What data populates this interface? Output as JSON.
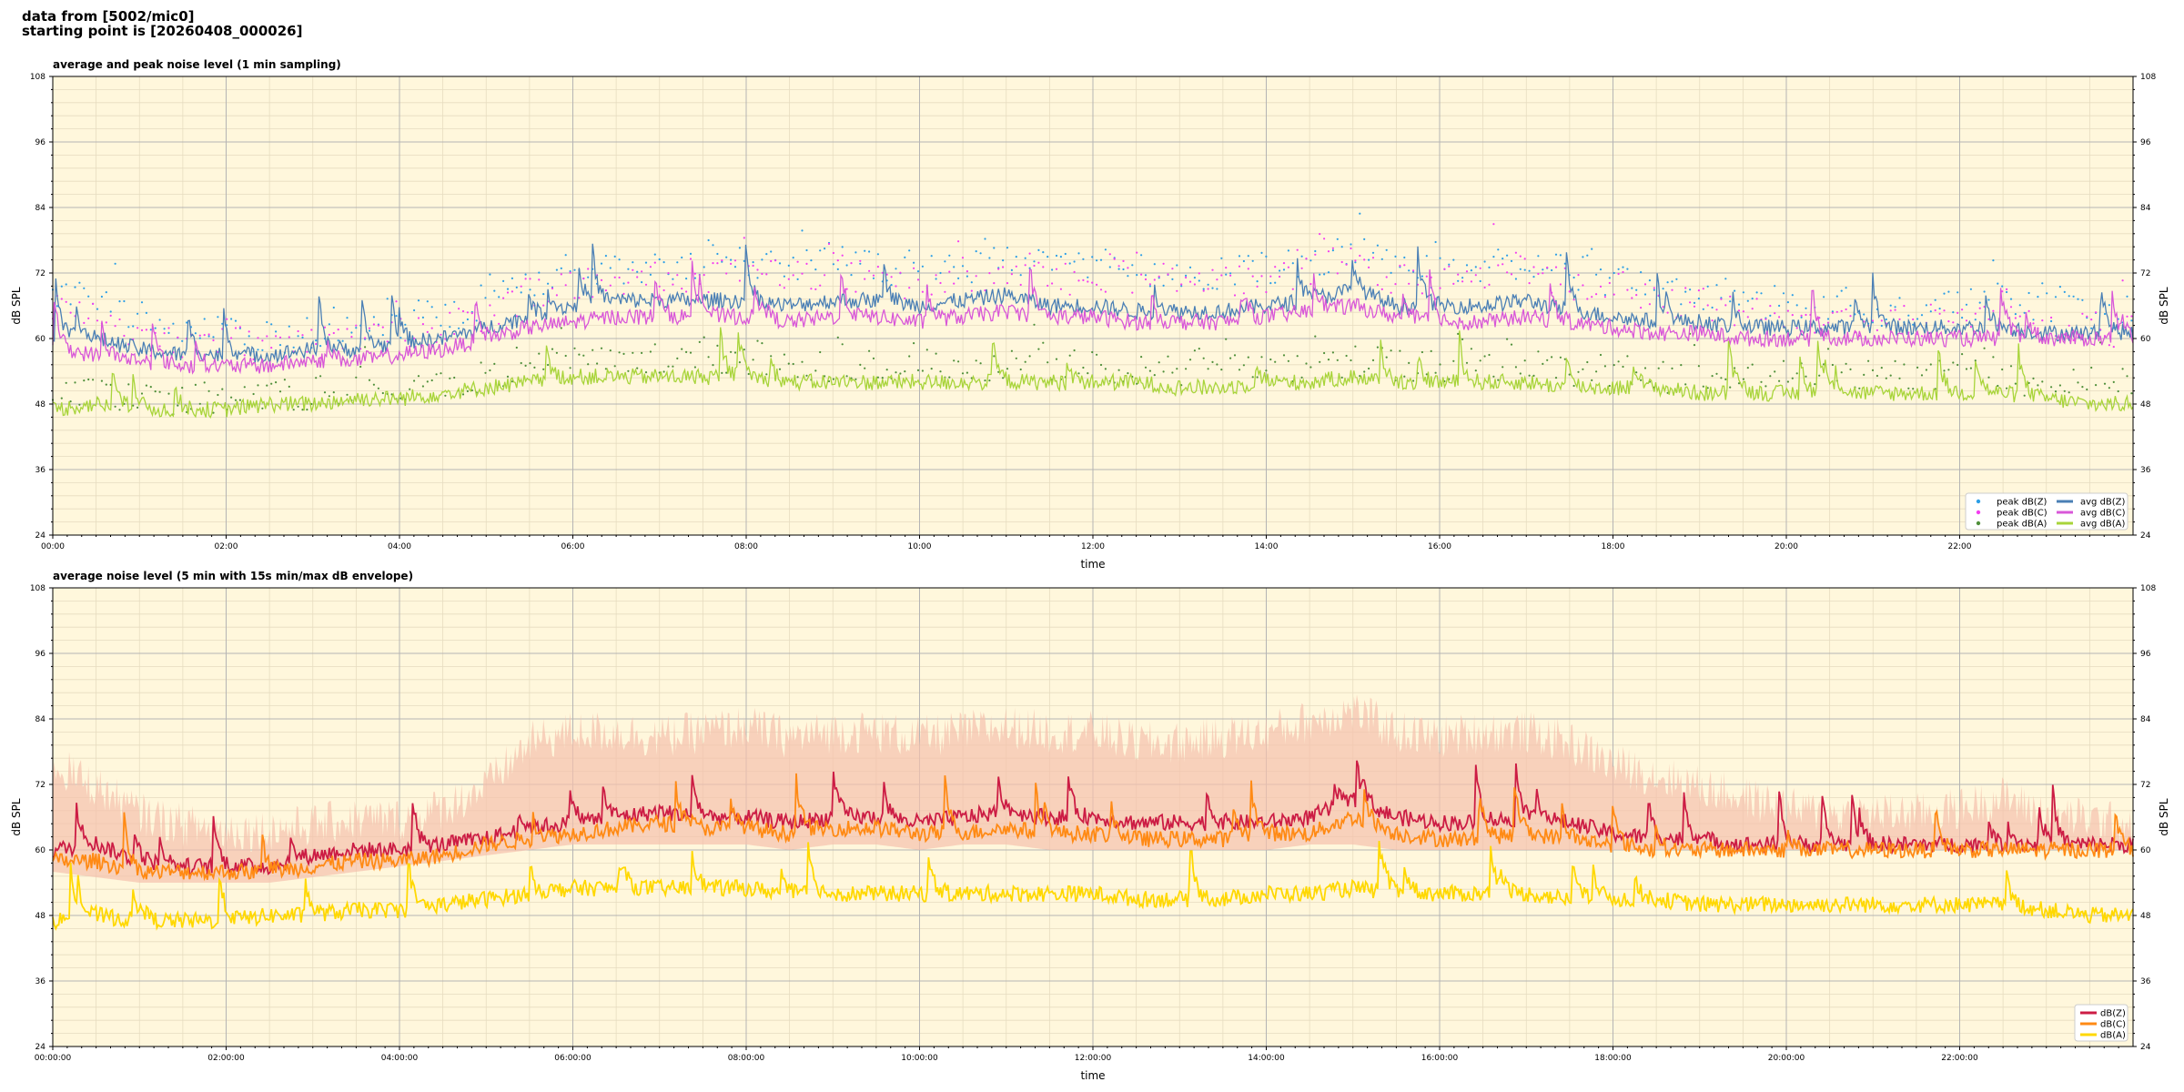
{
  "header": {
    "line1": "data from [5002/mic0]",
    "line2": "starting point is [20260408_000026]"
  },
  "colors": {
    "background": "#fff7dc",
    "grid_major": "#b4b4b4",
    "grid_minor": "#e6dcc0",
    "peak_z": "#2c9ee6",
    "peak_c": "#f33ef0",
    "peak_a": "#4f8f3a",
    "avg_z": "#4a7fb5",
    "avg_c": "#d857d8",
    "avg_a": "#a8d43a",
    "z": "#cc1c44",
    "c": "#ff8a14",
    "a": "#ffd800",
    "envelope": "#f5c0ac"
  },
  "chart_data": [
    {
      "type": "line",
      "title": "average and peak noise level (1 min sampling)",
      "xlabel": "time",
      "ylabel": "dB SPL",
      "ylim": [
        24,
        108
      ],
      "xlim_hours": [
        0,
        24
      ],
      "yticks": [
        "24",
        "36",
        "48",
        "60",
        "72",
        "84",
        "96",
        "108"
      ],
      "xticks": [
        "00:00",
        "02:00",
        "04:00",
        "06:00",
        "08:00",
        "10:00",
        "12:00",
        "14:00",
        "16:00",
        "18:00",
        "20:00",
        "22:00"
      ],
      "grid": true,
      "legend_position": "bottom-right",
      "x_hours": [
        0,
        0.5,
        1,
        1.5,
        2,
        2.5,
        3,
        3.5,
        4,
        4.5,
        5,
        5.5,
        6,
        6.5,
        7,
        7.5,
        8,
        8.5,
        9,
        9.5,
        10,
        10.5,
        11,
        11.5,
        12,
        12.5,
        13,
        13.5,
        14,
        14.5,
        15,
        15.5,
        16,
        16.5,
        17,
        17.5,
        18,
        18.5,
        19,
        19.5,
        20,
        20.5,
        21,
        21.5,
        22,
        22.5,
        23,
        23.5,
        24
      ],
      "series": [
        {
          "name": "peak dB(Z)",
          "kind": "points",
          "values": [
            68,
            67,
            63,
            61,
            61,
            60,
            61,
            62,
            62,
            64,
            66,
            70,
            72,
            73,
            73,
            73,
            74,
            73,
            74,
            73,
            72,
            73,
            74,
            73,
            73,
            72,
            72,
            72,
            73,
            74,
            76,
            73,
            72,
            73,
            74,
            72,
            70,
            69,
            68,
            67,
            66,
            65,
            65,
            65,
            66,
            67,
            65,
            64,
            63
          ]
        },
        {
          "name": "peak dB(C)",
          "kind": "points",
          "values": [
            65,
            64,
            60,
            59,
            59,
            58,
            59,
            60,
            60,
            62,
            64,
            67,
            70,
            71,
            71,
            71,
            72,
            71,
            72,
            71,
            70,
            71,
            72,
            71,
            71,
            70,
            70,
            70,
            71,
            72,
            74,
            71,
            70,
            71,
            72,
            70,
            68,
            67,
            66,
            65,
            64,
            63,
            63,
            63,
            64,
            65,
            63,
            62,
            61
          ]
        },
        {
          "name": "peak dB(A)",
          "kind": "points",
          "values": [
            50,
            50,
            49,
            49,
            49,
            49,
            50,
            51,
            51,
            52,
            53,
            55,
            56,
            56,
            56,
            56,
            56,
            55,
            55,
            55,
            55,
            55,
            55,
            55,
            55,
            54,
            54,
            54,
            55,
            55,
            56,
            55,
            55,
            55,
            55,
            54,
            54,
            53,
            53,
            53,
            53,
            53,
            53,
            53,
            53,
            53,
            52,
            52,
            52
          ]
        },
        {
          "name": "avg dB(Z)",
          "kind": "line",
          "values": [
            61,
            60,
            58,
            57,
            57,
            57,
            58,
            58,
            59,
            60,
            62,
            64,
            66,
            67,
            67,
            67,
            67,
            66,
            67,
            67,
            66,
            67,
            68,
            66,
            66,
            65,
            65,
            65,
            66,
            67,
            69,
            66,
            66,
            66,
            67,
            65,
            64,
            63,
            63,
            62,
            62,
            62,
            62,
            62,
            62,
            62,
            61,
            61,
            61
          ]
        },
        {
          "name": "avg dB(C)",
          "kind": "line",
          "values": [
            58,
            57,
            56,
            55,
            55,
            55,
            56,
            56,
            57,
            58,
            60,
            62,
            63,
            64,
            64,
            64,
            64,
            63,
            64,
            64,
            63,
            64,
            65,
            64,
            64,
            63,
            63,
            63,
            64,
            65,
            66,
            64,
            63,
            63,
            64,
            63,
            62,
            61,
            61,
            60,
            60,
            60,
            60,
            60,
            60,
            60,
            60,
            60,
            60
          ]
        },
        {
          "name": "avg dB(A)",
          "kind": "line",
          "values": [
            47,
            48,
            47,
            47,
            47,
            48,
            48,
            49,
            49,
            50,
            51,
            52,
            53,
            53,
            53,
            53,
            53,
            52,
            52,
            52,
            52,
            52,
            52,
            52,
            52,
            52,
            51,
            51,
            52,
            52,
            53,
            52,
            52,
            52,
            52,
            51,
            51,
            51,
            50,
            50,
            50,
            50,
            50,
            50,
            50,
            50,
            49,
            48,
            48
          ]
        }
      ]
    },
    {
      "type": "line",
      "title": "average noise level (5 min with 15s min/max dB envelope)",
      "xlabel": "time",
      "ylabel": "dB SPL",
      "ylim": [
        24,
        108
      ],
      "xlim_hours": [
        0,
        24
      ],
      "yticks": [
        "24",
        "36",
        "48",
        "60",
        "72",
        "84",
        "96",
        "108"
      ],
      "xticks": [
        "00:00:00",
        "02:00:00",
        "04:00:00",
        "06:00:00",
        "08:00:00",
        "10:00:00",
        "12:00:00",
        "14:00:00",
        "16:00:00",
        "18:00:00",
        "20:00:00",
        "22:00:00"
      ],
      "grid": true,
      "legend_position": "bottom-right",
      "x_hours": [
        0,
        0.5,
        1,
        1.5,
        2,
        2.5,
        3,
        3.5,
        4,
        4.5,
        5,
        5.5,
        6,
        6.5,
        7,
        7.5,
        8,
        8.5,
        9,
        9.5,
        10,
        10.5,
        11,
        11.5,
        12,
        12.5,
        13,
        13.5,
        14,
        14.5,
        15,
        15.5,
        16,
        16.5,
        17,
        17.5,
        18,
        18.5,
        19,
        19.5,
        20,
        20.5,
        21,
        21.5,
        22,
        22.5,
        23,
        23.5,
        24
      ],
      "envelope_max": [
        74,
        70,
        65,
        63,
        62,
        62,
        63,
        64,
        64,
        66,
        70,
        78,
        80,
        80,
        79,
        80,
        81,
        79,
        80,
        80,
        79,
        80,
        81,
        80,
        80,
        78,
        78,
        79,
        80,
        82,
        84,
        80,
        79,
        80,
        80,
        78,
        74,
        72,
        70,
        68,
        66,
        65,
        65,
        65,
        66,
        68,
        65,
        64,
        63
      ],
      "envelope_min": [
        56,
        55,
        54,
        54,
        54,
        54,
        55,
        56,
        57,
        58,
        59,
        60,
        61,
        61,
        61,
        61,
        61,
        60,
        61,
        61,
        60,
        61,
        61,
        60,
        60,
        60,
        60,
        60,
        60,
        61,
        61,
        60,
        60,
        60,
        60,
        60,
        60,
        60,
        60,
        60,
        60,
        60,
        60,
        60,
        60,
        60,
        60,
        60,
        60
      ],
      "series": [
        {
          "name": "dB(Z)",
          "kind": "line",
          "values": [
            60,
            61,
            58,
            57,
            57,
            57,
            59,
            60,
            60,
            61,
            62,
            64,
            65,
            66,
            67,
            66,
            66,
            65,
            66,
            66,
            65,
            66,
            67,
            66,
            66,
            65,
            65,
            65,
            65,
            66,
            69,
            66,
            65,
            65,
            66,
            65,
            63,
            62,
            62,
            61,
            61,
            61,
            61,
            61,
            61,
            61,
            61,
            61,
            61
          ]
        },
        {
          "name": "dB(C)",
          "kind": "line",
          "values": [
            58,
            58,
            56,
            56,
            56,
            56,
            57,
            58,
            58,
            59,
            61,
            62,
            63,
            64,
            65,
            64,
            64,
            63,
            64,
            64,
            63,
            63,
            64,
            63,
            63,
            62,
            62,
            62,
            63,
            63,
            66,
            63,
            62,
            62,
            63,
            62,
            61,
            60,
            60,
            60,
            60,
            60,
            60,
            60,
            60,
            60,
            60,
            60,
            60
          ]
        },
        {
          "name": "dB(A)",
          "kind": "line",
          "values": [
            47,
            48,
            47,
            47,
            47,
            48,
            48,
            49,
            49,
            50,
            51,
            52,
            53,
            53,
            53,
            53,
            53,
            52,
            52,
            52,
            52,
            52,
            52,
            52,
            52,
            51,
            51,
            51,
            52,
            52,
            53,
            52,
            52,
            52,
            52,
            51,
            51,
            51,
            50,
            50,
            50,
            50,
            50,
            50,
            50,
            50,
            49,
            48,
            48
          ]
        }
      ]
    }
  ]
}
